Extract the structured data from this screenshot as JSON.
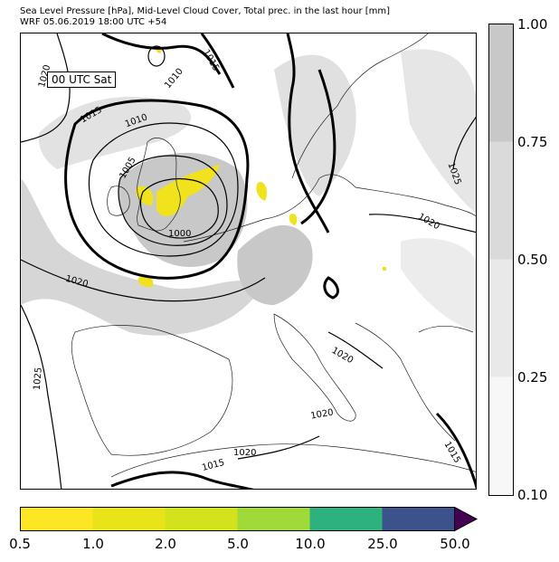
{
  "header": {
    "line1": "Sea Level Pressure [hPa], Mid-Level Cloud Cover, Total prec. in the last hour [mm]",
    "line2": "WRF 05.06.2019 18:00 UTC +54"
  },
  "map": {
    "time_stamp": "00 UTC Sat",
    "isobar_labels": [
      "1020",
      "1010",
      "1015",
      "1015",
      "1010",
      "1005",
      "1000",
      "1020",
      "1025",
      "1025",
      "1020",
      "1020",
      "1020",
      "1020",
      "1015",
      "1015"
    ]
  },
  "cloud_colorbar": {
    "ticks": [
      "1.00",
      "0.75",
      "0.50",
      "0.25",
      "0.10"
    ],
    "colors": [
      "#c8c8c8",
      "#dadada",
      "#e9e9e9",
      "#f7f7f7"
    ]
  },
  "precip_colorbar": {
    "ticks": [
      "0.5",
      "1.0",
      "2.0",
      "5.0",
      "10.0",
      "25.0",
      "50.0"
    ],
    "colors": [
      "#fde725",
      "#e8e419",
      "#d2e21b",
      "#a0da39",
      "#4ac16d",
      "#2db27d",
      "#3b528b"
    ],
    "extend_color": "#440154"
  }
}
